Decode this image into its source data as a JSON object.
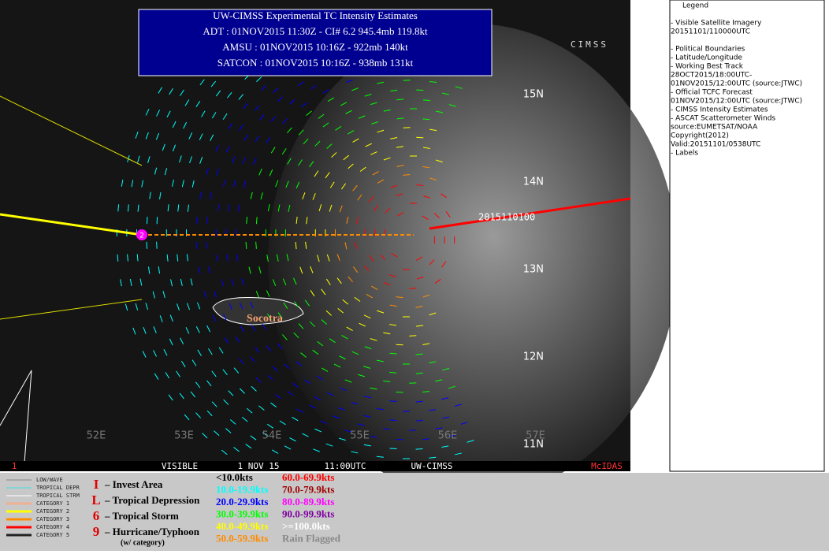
{
  "header": {
    "title": "UW-CIMSS Experimental TC Intensity Estimates",
    "lines": [
      "ADT : 01NOV2015 11:30Z -   CI# 6.2   945.4mb   119.8kt",
      "AMSU : 01NOV2015 10:16Z  -  922mb   140kt",
      "SATCON : 01NOV2015 10:16Z  -  938mb   131kt"
    ]
  },
  "logo": "CIMSS",
  "lat_labels": [
    "15N",
    "14N",
    "13N",
    "12N",
    "11N"
  ],
  "lon_labels": [
    "52E",
    "53E",
    "54E",
    "55E",
    "56E",
    "57E"
  ],
  "map_labels": {
    "island": "Socotra",
    "track_time": "2015110100",
    "storm_category": "2"
  },
  "status_bar": [
    "1",
    "VISIBLE",
    "1 NOV 15",
    "11:00UTC",
    "UW-CIMSS",
    "McIDAS"
  ],
  "legend_panel": {
    "title": "Legend",
    "lines": [
      "-  Visible Satellite Imagery",
      "20151101/110000UTC",
      "",
      "-  Political Boundaries",
      "-  Latitude/Longitude",
      "-  Working Best Track",
      "28OCT2015/18:00UTC-",
      "01NOV2015/12:00UTC    (source:JTWC)",
      "-  Official TCFC Forecast",
      "01NOV2015/12:00UTC  (source:JTWC)",
      "-  CIMSS Intensity Estimates",
      "-  ASCAT Scatterometer Winds",
      "source:EUMETSAT/NOAA",
      "Copyright(2012)",
      "Valid:20151101/0538UTC",
      "-  Labels"
    ]
  },
  "track_legend": [
    {
      "name": "LOW/WAVE",
      "color": "#888888"
    },
    {
      "name": "TROPICAL DEPR",
      "color": "#40e0e0"
    },
    {
      "name": "TROPICAL STRM",
      "color": "#ffffff"
    },
    {
      "name": "CATEGORY 1",
      "color": "#f0b090"
    },
    {
      "name": "CATEGORY 2",
      "color": "#ffff00"
    },
    {
      "name": "CATEGORY 3",
      "color": "#ff8c00"
    },
    {
      "name": "CATEGORY 4",
      "color": "#ff0000"
    },
    {
      "name": "CATEGORY 5",
      "color": "#222222"
    }
  ],
  "symbol_legend": [
    {
      "symbol": "I",
      "label": "– Invest Area"
    },
    {
      "symbol": "L",
      "label": "– Tropical Depression"
    },
    {
      "symbol": "6",
      "label": "– Tropical Storm"
    },
    {
      "symbol": "9",
      "label": "– Hurricane/Typhoon"
    }
  ],
  "symbol_note": "(w/ category)",
  "wind_legend": [
    {
      "label": "<10.0kts",
      "color": "#000000"
    },
    {
      "label": "10.0-19.9kts",
      "color": "#00ffff"
    },
    {
      "label": "20.0-29.9kts",
      "color": "#0000ff"
    },
    {
      "label": "30.0-39.9kts",
      "color": "#00ff00"
    },
    {
      "label": "40.0-49.9kts",
      "color": "#ffff00"
    },
    {
      "label": "50.0-59.9kts",
      "color": "#ff8c00"
    },
    {
      "label": "60.0-69.9kts",
      "color": "#ff0000"
    },
    {
      "label": "70.0-79.9kts",
      "color": "#a00000"
    },
    {
      "label": "80.0-89.9kts",
      "color": "#ff00ff"
    },
    {
      "label": "90.0-99.9kts",
      "color": "#8000a0"
    },
    {
      "label": ">=100.0kts",
      "color": "#ffffff"
    },
    {
      "label": "Rain Flagged",
      "color": "#888888"
    }
  ]
}
